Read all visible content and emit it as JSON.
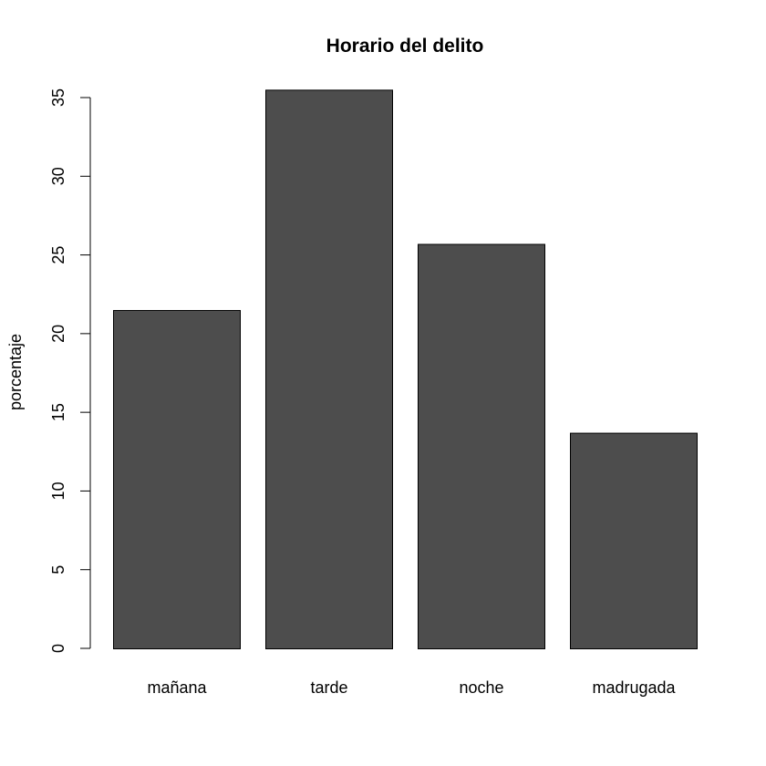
{
  "chart_data": {
    "type": "bar",
    "title": "Horario del delito",
    "xlabel": "",
    "ylabel": "porcentaje",
    "categories": [
      "mañana",
      "tarde",
      "noche",
      "madrugada"
    ],
    "values": [
      21.5,
      35.5,
      25.7,
      13.7
    ],
    "ylim": [
      0,
      35
    ],
    "yticks": [
      0,
      5,
      10,
      15,
      20,
      25,
      30,
      35
    ],
    "bar_color": "#4d4d4d",
    "bar_border_color": "#000000",
    "grid": false,
    "legend": "none"
  }
}
